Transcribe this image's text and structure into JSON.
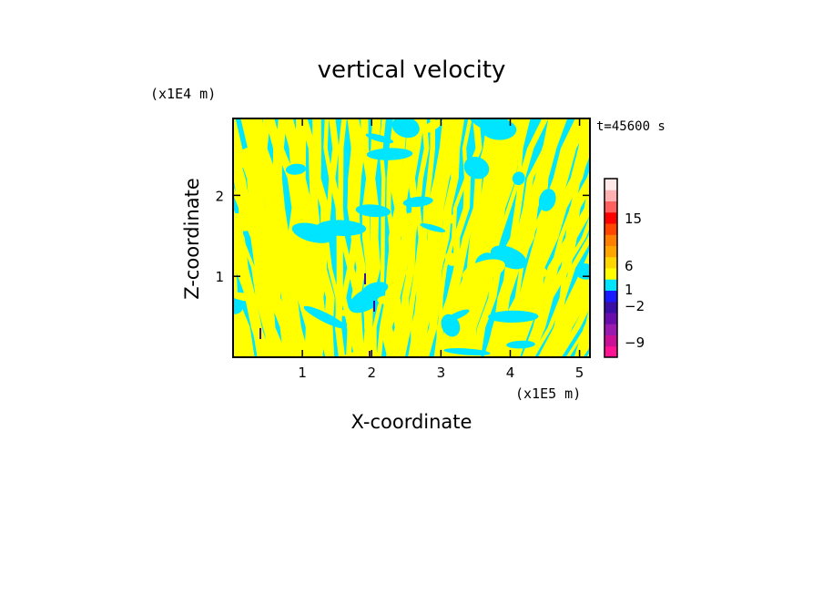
{
  "chart_data": {
    "type": "heatmap",
    "title": "vertical velocity",
    "xlabel": "X-coordinate",
    "ylabel": "Z-coordinate",
    "x_unit": "(x1E5 m)",
    "y_unit": "(x1E4 m)",
    "time_label": "t=45600 s",
    "x_ticks": [
      "1",
      "2",
      "3",
      "4",
      "5"
    ],
    "y_ticks": [
      "1",
      "2"
    ],
    "xlim": [
      0,
      5.15
    ],
    "ylim": [
      0,
      2.95
    ],
    "colorbar": {
      "levels_shown": [
        "15",
        "6",
        "1",
        "−2",
        "−9"
      ],
      "colors": [
        "#ff1493",
        "#cc1199",
        "#991bb0",
        "#6a0dad",
        "#3a0fa6",
        "#1a1aff",
        "#00e5ff",
        "#ffff00",
        "#ffd700",
        "#ffa500",
        "#ff7f00",
        "#ff4500",
        "#ff0000",
        "#ff6060",
        "#ffb0b0",
        "#ffe8e8"
      ]
    },
    "dominant_fill": {
      "positive": "#ffff00",
      "negative": "#00e5ff"
    }
  }
}
